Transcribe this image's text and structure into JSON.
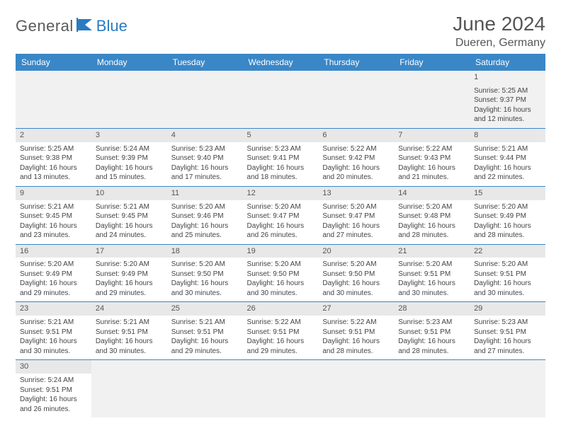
{
  "brand": {
    "general": "General",
    "blue": "Blue"
  },
  "title": "June 2024",
  "location": "Dueren, Germany",
  "colors": {
    "header_bg": "#3a87c7",
    "header_text": "#ffffff",
    "grid_line": "#3a87c7",
    "dayband": "#e8e8e8",
    "text": "#444444",
    "logo_gray": "#5a5a5a",
    "logo_blue": "#2a7bbf"
  },
  "weekdays": [
    "Sunday",
    "Monday",
    "Tuesday",
    "Wednesday",
    "Thursday",
    "Friday",
    "Saturday"
  ],
  "weeks": [
    [
      null,
      null,
      null,
      null,
      null,
      null,
      {
        "n": "1",
        "sr": "Sunrise: 5:25 AM",
        "ss": "Sunset: 9:37 PM",
        "d1": "Daylight: 16 hours",
        "d2": "and 12 minutes."
      }
    ],
    [
      {
        "n": "2",
        "sr": "Sunrise: 5:25 AM",
        "ss": "Sunset: 9:38 PM",
        "d1": "Daylight: 16 hours",
        "d2": "and 13 minutes."
      },
      {
        "n": "3",
        "sr": "Sunrise: 5:24 AM",
        "ss": "Sunset: 9:39 PM",
        "d1": "Daylight: 16 hours",
        "d2": "and 15 minutes."
      },
      {
        "n": "4",
        "sr": "Sunrise: 5:23 AM",
        "ss": "Sunset: 9:40 PM",
        "d1": "Daylight: 16 hours",
        "d2": "and 17 minutes."
      },
      {
        "n": "5",
        "sr": "Sunrise: 5:23 AM",
        "ss": "Sunset: 9:41 PM",
        "d1": "Daylight: 16 hours",
        "d2": "and 18 minutes."
      },
      {
        "n": "6",
        "sr": "Sunrise: 5:22 AM",
        "ss": "Sunset: 9:42 PM",
        "d1": "Daylight: 16 hours",
        "d2": "and 20 minutes."
      },
      {
        "n": "7",
        "sr": "Sunrise: 5:22 AM",
        "ss": "Sunset: 9:43 PM",
        "d1": "Daylight: 16 hours",
        "d2": "and 21 minutes."
      },
      {
        "n": "8",
        "sr": "Sunrise: 5:21 AM",
        "ss": "Sunset: 9:44 PM",
        "d1": "Daylight: 16 hours",
        "d2": "and 22 minutes."
      }
    ],
    [
      {
        "n": "9",
        "sr": "Sunrise: 5:21 AM",
        "ss": "Sunset: 9:45 PM",
        "d1": "Daylight: 16 hours",
        "d2": "and 23 minutes."
      },
      {
        "n": "10",
        "sr": "Sunrise: 5:21 AM",
        "ss": "Sunset: 9:45 PM",
        "d1": "Daylight: 16 hours",
        "d2": "and 24 minutes."
      },
      {
        "n": "11",
        "sr": "Sunrise: 5:20 AM",
        "ss": "Sunset: 9:46 PM",
        "d1": "Daylight: 16 hours",
        "d2": "and 25 minutes."
      },
      {
        "n": "12",
        "sr": "Sunrise: 5:20 AM",
        "ss": "Sunset: 9:47 PM",
        "d1": "Daylight: 16 hours",
        "d2": "and 26 minutes."
      },
      {
        "n": "13",
        "sr": "Sunrise: 5:20 AM",
        "ss": "Sunset: 9:47 PM",
        "d1": "Daylight: 16 hours",
        "d2": "and 27 minutes."
      },
      {
        "n": "14",
        "sr": "Sunrise: 5:20 AM",
        "ss": "Sunset: 9:48 PM",
        "d1": "Daylight: 16 hours",
        "d2": "and 28 minutes."
      },
      {
        "n": "15",
        "sr": "Sunrise: 5:20 AM",
        "ss": "Sunset: 9:49 PM",
        "d1": "Daylight: 16 hours",
        "d2": "and 28 minutes."
      }
    ],
    [
      {
        "n": "16",
        "sr": "Sunrise: 5:20 AM",
        "ss": "Sunset: 9:49 PM",
        "d1": "Daylight: 16 hours",
        "d2": "and 29 minutes."
      },
      {
        "n": "17",
        "sr": "Sunrise: 5:20 AM",
        "ss": "Sunset: 9:49 PM",
        "d1": "Daylight: 16 hours",
        "d2": "and 29 minutes."
      },
      {
        "n": "18",
        "sr": "Sunrise: 5:20 AM",
        "ss": "Sunset: 9:50 PM",
        "d1": "Daylight: 16 hours",
        "d2": "and 30 minutes."
      },
      {
        "n": "19",
        "sr": "Sunrise: 5:20 AM",
        "ss": "Sunset: 9:50 PM",
        "d1": "Daylight: 16 hours",
        "d2": "and 30 minutes."
      },
      {
        "n": "20",
        "sr": "Sunrise: 5:20 AM",
        "ss": "Sunset: 9:50 PM",
        "d1": "Daylight: 16 hours",
        "d2": "and 30 minutes."
      },
      {
        "n": "21",
        "sr": "Sunrise: 5:20 AM",
        "ss": "Sunset: 9:51 PM",
        "d1": "Daylight: 16 hours",
        "d2": "and 30 minutes."
      },
      {
        "n": "22",
        "sr": "Sunrise: 5:20 AM",
        "ss": "Sunset: 9:51 PM",
        "d1": "Daylight: 16 hours",
        "d2": "and 30 minutes."
      }
    ],
    [
      {
        "n": "23",
        "sr": "Sunrise: 5:21 AM",
        "ss": "Sunset: 9:51 PM",
        "d1": "Daylight: 16 hours",
        "d2": "and 30 minutes."
      },
      {
        "n": "24",
        "sr": "Sunrise: 5:21 AM",
        "ss": "Sunset: 9:51 PM",
        "d1": "Daylight: 16 hours",
        "d2": "and 30 minutes."
      },
      {
        "n": "25",
        "sr": "Sunrise: 5:21 AM",
        "ss": "Sunset: 9:51 PM",
        "d1": "Daylight: 16 hours",
        "d2": "and 29 minutes."
      },
      {
        "n": "26",
        "sr": "Sunrise: 5:22 AM",
        "ss": "Sunset: 9:51 PM",
        "d1": "Daylight: 16 hours",
        "d2": "and 29 minutes."
      },
      {
        "n": "27",
        "sr": "Sunrise: 5:22 AM",
        "ss": "Sunset: 9:51 PM",
        "d1": "Daylight: 16 hours",
        "d2": "and 28 minutes."
      },
      {
        "n": "28",
        "sr": "Sunrise: 5:23 AM",
        "ss": "Sunset: 9:51 PM",
        "d1": "Daylight: 16 hours",
        "d2": "and 28 minutes."
      },
      {
        "n": "29",
        "sr": "Sunrise: 5:23 AM",
        "ss": "Sunset: 9:51 PM",
        "d1": "Daylight: 16 hours",
        "d2": "and 27 minutes."
      }
    ],
    [
      {
        "n": "30",
        "sr": "Sunrise: 5:24 AM",
        "ss": "Sunset: 9:51 PM",
        "d1": "Daylight: 16 hours",
        "d2": "and 26 minutes."
      },
      null,
      null,
      null,
      null,
      null,
      null
    ]
  ]
}
